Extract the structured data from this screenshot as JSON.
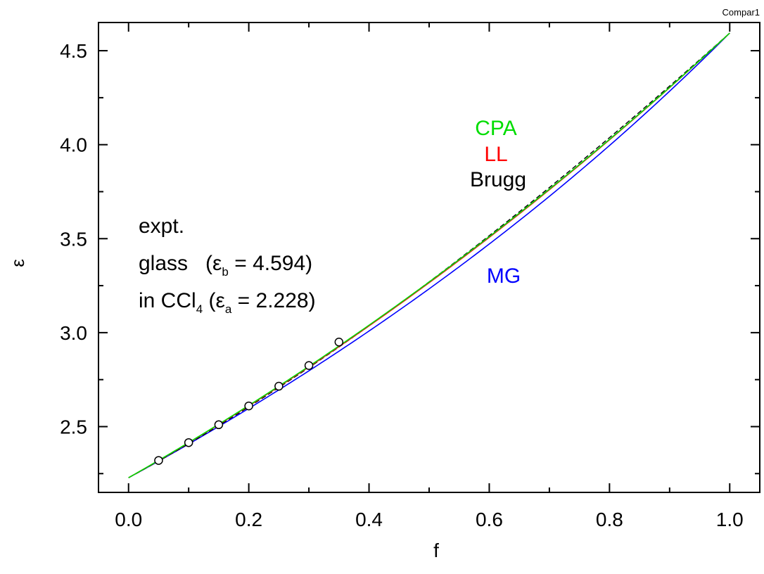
{
  "corner_label": "Compar1",
  "chart_data": {
    "type": "line",
    "xlabel": "f",
    "ylabel": "ε",
    "xlim": [
      -0.05,
      1.05
    ],
    "ylim": [
      2.15,
      4.65
    ],
    "x_ticks": [
      "0.0",
      "0.2",
      "0.4",
      "0.6",
      "0.8",
      "1.0"
    ],
    "x_tick_values": [
      0.0,
      0.2,
      0.4,
      0.6,
      0.8,
      1.0
    ],
    "y_ticks": [
      "2.5",
      "3.0",
      "3.5",
      "4.0",
      "4.5"
    ],
    "y_tick_values": [
      2.5,
      3.0,
      3.5,
      4.0,
      4.5
    ],
    "eps_a": 2.228,
    "eps_b": 4.594,
    "series": [
      {
        "name": "CPA",
        "color": "#00dd00",
        "style": "solid"
      },
      {
        "name": "LL",
        "color": "#ff0000",
        "style": "solid"
      },
      {
        "name": "Brugg",
        "color": "#000000",
        "style": "dashed"
      },
      {
        "name": "MG",
        "color": "#0000ff",
        "style": "solid"
      }
    ],
    "experimental": {
      "x": [
        0.05,
        0.1,
        0.15,
        0.2,
        0.25,
        0.3,
        0.35
      ],
      "y": [
        2.32,
        2.415,
        2.51,
        2.61,
        2.715,
        2.825,
        2.95
      ]
    },
    "annotations": {
      "line1": "expt.",
      "line2_prefix": "glass   (",
      "line2_symbol": "ε",
      "line2_sub": "b",
      "line2_value": " = 4.594)",
      "line3_prefix": "in CCl",
      "line3_sub4": "4",
      "line3_mid": " (",
      "line3_symbol": "ε",
      "line3_sub": "a",
      "line3_value": " = 2.228)"
    }
  }
}
